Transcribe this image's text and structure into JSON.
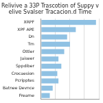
{
  "chart_data": {
    "type": "bar",
    "orientation": "horizontal",
    "title": [
      "Relivive a 33P Trascotion of Suppy v",
      "elive Svalser Tracacion.d Time"
    ],
    "categories": [
      "XRPF",
      "XPF APE",
      "Dn",
      "Tm",
      "Ottler",
      "Jaiseer",
      "Sppdiber",
      "Crocaesion",
      "Pcripptes",
      "Batnee Devnce",
      "Freame"
    ],
    "values": [
      95,
      60,
      45,
      50,
      40,
      30,
      35,
      28,
      30,
      20,
      15
    ],
    "color": "#8fc1e3",
    "xlim": [
      0,
      100
    ],
    "xticks": [
      0,
      25,
      50,
      75,
      100
    ],
    "grid": true,
    "tick_labels": "y"
  }
}
